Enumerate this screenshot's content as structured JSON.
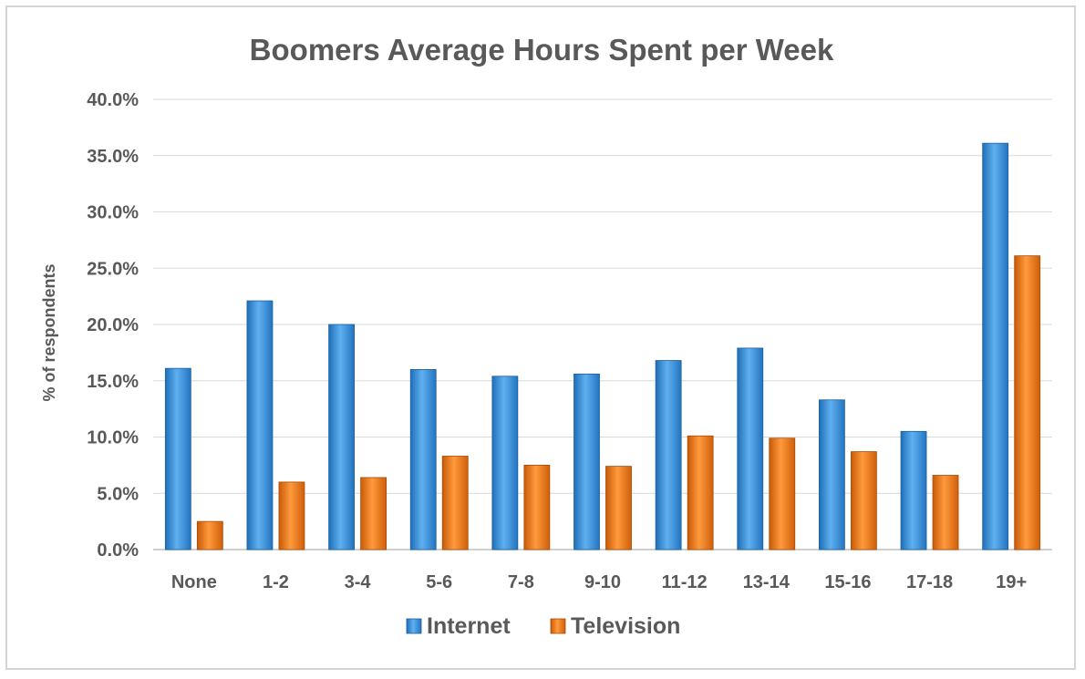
{
  "chart_data": {
    "type": "bar",
    "title": "Boomers Average Hours Spent per Week",
    "xlabel": "",
    "ylabel": "% of respondents",
    "ylim": [
      0,
      40
    ],
    "ytick_step": 5,
    "ytick_format": "percent_1dp",
    "grid": true,
    "legend_position": "bottom",
    "categories": [
      "None",
      "1-2",
      "3-4",
      "5-6",
      "7-8",
      "9-10",
      "11-12",
      "13-14",
      "15-16",
      "17-18",
      "19+"
    ],
    "series": [
      {
        "name": "Internet",
        "color": "#3a8fd6",
        "values": [
          16.1,
          22.1,
          20.0,
          16.0,
          15.4,
          15.6,
          16.8,
          17.9,
          13.3,
          10.5,
          36.1
        ]
      },
      {
        "name": "Television",
        "color": "#e8700f",
        "values": [
          2.5,
          6.0,
          6.4,
          8.3,
          7.5,
          7.4,
          10.1,
          9.9,
          8.7,
          6.6,
          26.1
        ]
      }
    ]
  }
}
